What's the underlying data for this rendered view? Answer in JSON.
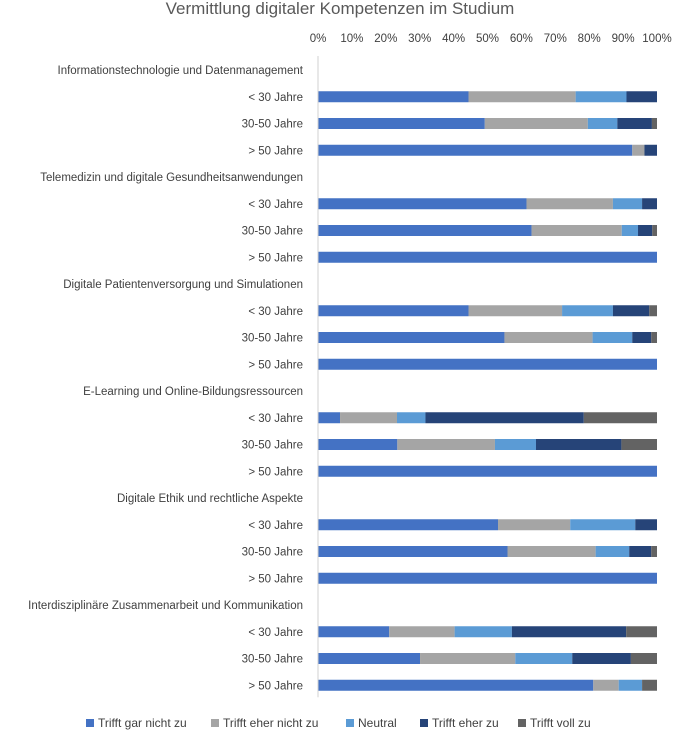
{
  "chart_data": {
    "type": "bar",
    "orientation": "horizontal",
    "stacked": "percent",
    "title": "Vermittlung digitaler Kompetenzen im Studium",
    "xlim": [
      0,
      100
    ],
    "x_ticks": [
      "0%",
      "10%",
      "20%",
      "30%",
      "40%",
      "50%",
      "60%",
      "70%",
      "80%",
      "90%",
      "100%"
    ],
    "legend_position": "bottom",
    "gridlines": false,
    "series": [
      {
        "name": "Trifft gar nicht zu",
        "color": "#4472C4"
      },
      {
        "name": "Trifft eher nicht zu",
        "color": "#A5A5A5"
      },
      {
        "name": "Neutral",
        "color": "#5B9BD5"
      },
      {
        "name": "Trifft eher zu",
        "color": "#264478"
      },
      {
        "name": "Trifft voll zu",
        "color": "#636363"
      }
    ],
    "groups": [
      {
        "label": "Informationstechnologie und Datenmanagement",
        "rows": [
          {
            "label": "< 30 Jahre",
            "values": [
              44.4,
              31.6,
              15.0,
              9.0,
              0.0
            ]
          },
          {
            "label": "30-50 Jahre",
            "values": [
              49.2,
              30.4,
              8.7,
              10.2,
              1.5
            ]
          },
          {
            "label": "> 50 Jahre",
            "values": [
              92.7,
              3.6,
              0.0,
              3.7,
              0.0
            ]
          }
        ]
      },
      {
        "label": "Telemedizin und digitale Gesundheitsanwendungen",
        "rows": [
          {
            "label": "< 30 Jahre",
            "values": [
              61.5,
              25.5,
              8.6,
              4.4,
              0.0
            ]
          },
          {
            "label": "30-50 Jahre",
            "values": [
              63.0,
              26.6,
              4.8,
              4.2,
              1.4
            ]
          },
          {
            "label": "> 50 Jahre",
            "values": [
              100,
              0,
              0,
              0,
              0
            ]
          }
        ]
      },
      {
        "label": "Digitale Patientenversorgung und Simulationen",
        "rows": [
          {
            "label": "< 30 Jahre",
            "values": [
              44.4,
              27.6,
              15.0,
              10.7,
              2.3
            ]
          },
          {
            "label": "30-50 Jahre",
            "values": [
              55.0,
              26.0,
              11.7,
              5.6,
              1.7
            ]
          },
          {
            "label": "> 50 Jahre",
            "values": [
              100,
              0,
              0,
              0,
              0
            ]
          }
        ]
      },
      {
        "label": "E-Learning und Online-Bildungsressourcen",
        "rows": [
          {
            "label": "< 30 Jahre",
            "values": [
              6.5,
              16.8,
              8.4,
              46.7,
              21.6
            ]
          },
          {
            "label": "30-50 Jahre",
            "values": [
              23.4,
              28.8,
              12.1,
              25.2,
              10.5
            ]
          },
          {
            "label": "> 50 Jahre",
            "values": [
              100,
              0,
              0,
              0,
              0
            ]
          }
        ]
      },
      {
        "label": "Digitale Ethik und rechtliche Aspekte",
        "rows": [
          {
            "label": "< 30 Jahre",
            "values": [
              53.1,
              21.3,
              19.2,
              6.4,
              0.0
            ]
          },
          {
            "label": "30-50 Jahre",
            "values": [
              55.9,
              26.0,
              9.9,
              6.5,
              1.7
            ]
          },
          {
            "label": "> 50 Jahre",
            "values": [
              100,
              0,
              0,
              0,
              0
            ]
          }
        ]
      },
      {
        "label": "Interdisziplinäre Zusammenarbeit und Kommunikation",
        "rows": [
          {
            "label": "< 30 Jahre",
            "values": [
              21.0,
              19.3,
              16.9,
              33.7,
              9.1
            ]
          },
          {
            "label": "30-50 Jahre",
            "values": [
              30.1,
              28.1,
              16.8,
              17.3,
              7.7
            ]
          },
          {
            "label": "> 50 Jahre",
            "values": [
              81.2,
              7.5,
              6.9,
              0.0,
              4.4
            ]
          }
        ]
      }
    ]
  }
}
